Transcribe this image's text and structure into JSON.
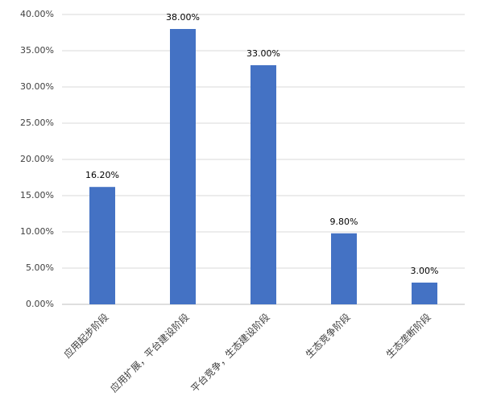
{
  "chart_data": {
    "type": "bar",
    "categories": [
      "应用起步阶段",
      "应用扩展，平台建设阶段",
      "平台竞争，生态建设阶段",
      "生态竞争阶段",
      "生态垄断阶段"
    ],
    "values": [
      16.2,
      38,
      33,
      9.8,
      3
    ],
    "value_labels": [
      "16.20%",
      "38.00%",
      "33.00%",
      "9.80%",
      "3.00%"
    ],
    "color": "#4472c4",
    "ylim": [
      0,
      40
    ],
    "yticks": [
      {
        "value": 0,
        "label": "0.00%"
      },
      {
        "value": 5,
        "label": "5.00%"
      },
      {
        "value": 10,
        "label": "10.00%"
      },
      {
        "value": 15,
        "label": "15.00%"
      },
      {
        "value": 20,
        "label": "20.00%"
      },
      {
        "value": 25,
        "label": "25.00%"
      },
      {
        "value": 30,
        "label": "30.00%"
      },
      {
        "value": 35,
        "label": "35.00%"
      },
      {
        "value": 40,
        "label": "40.00%"
      }
    ],
    "grid": true
  }
}
